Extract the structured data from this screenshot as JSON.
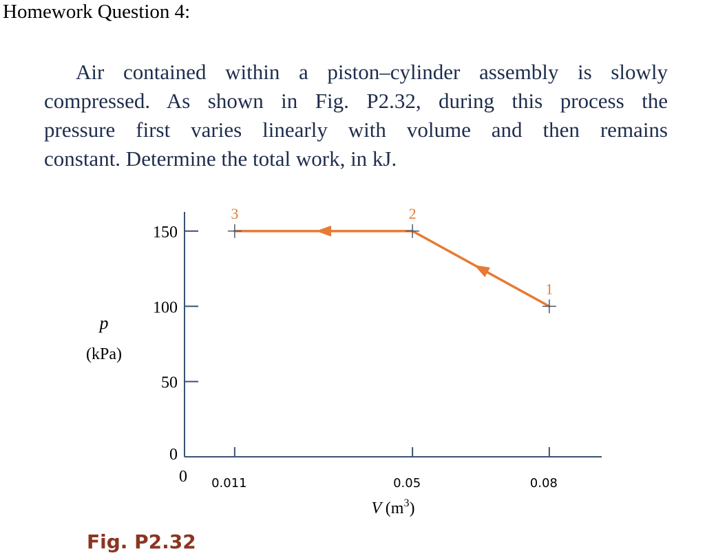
{
  "header": {
    "title": "Homework Question 4:"
  },
  "problem": {
    "lines": [
      "Air contained within a piston–cylinder assembly is slowly",
      "compressed. As shown in Fig. P2.32, during this process the",
      "pressure first varies linearly with volume and then remains",
      "constant. Determine the total work, in kJ."
    ]
  },
  "figure": {
    "caption": "Fig. P2.32"
  },
  "chart_data": {
    "type": "line",
    "title": "",
    "xlabel": "V (m³)",
    "ylabel": "p",
    "ylabel_unit": "(kPa)",
    "x_origin_label": "0",
    "x_ticks": [
      {
        "value": 0.011,
        "label": "0.011"
      },
      {
        "value": 0.05,
        "label": "0.05"
      },
      {
        "value": 0.08,
        "label": "0.08"
      }
    ],
    "y_ticks": [
      {
        "value": 0,
        "label": "0"
      },
      {
        "value": 50,
        "label": "50"
      },
      {
        "value": 100,
        "label": "100"
      },
      {
        "value": 150,
        "label": "150"
      }
    ],
    "xlim": [
      0,
      0.0915
    ],
    "ylim": [
      0,
      160
    ],
    "series": [
      {
        "color": "#e87a33",
        "points": [
          {
            "state": "1",
            "V": 0.08,
            "p": 100
          },
          {
            "state": "2",
            "V": 0.05,
            "p": 150
          },
          {
            "state": "3",
            "V": 0.011,
            "p": 150
          }
        ]
      }
    ],
    "process_direction": "1 → 2 → 3",
    "grid": false,
    "legend": "none",
    "colors": {
      "process_line": "#e87a33",
      "state_label": "#e87a33",
      "axis": "#3a5272",
      "tick_label": "#000000"
    }
  }
}
